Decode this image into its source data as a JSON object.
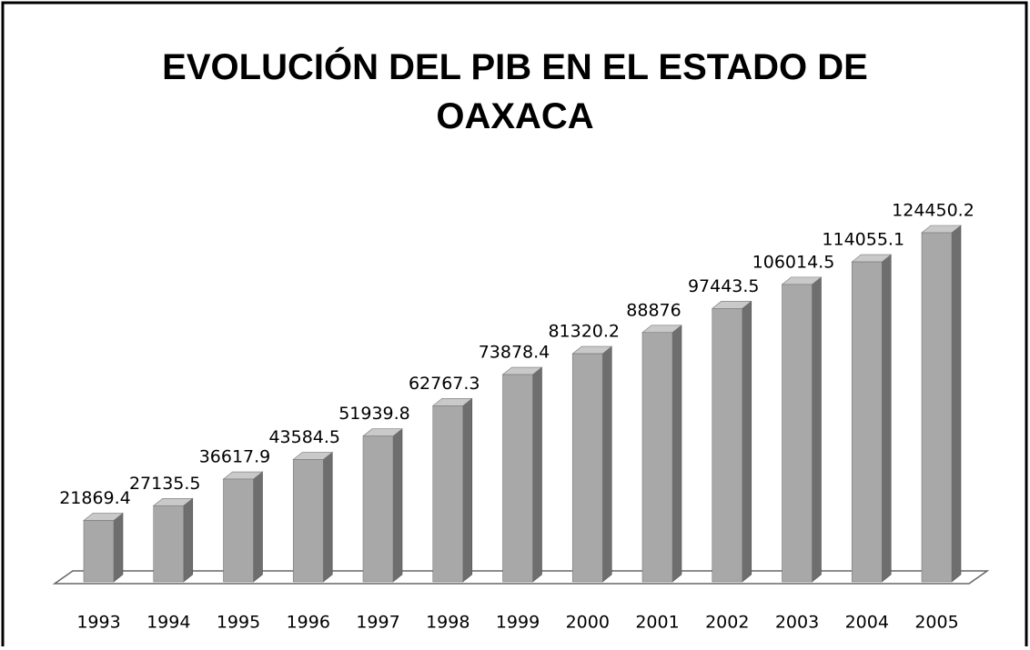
{
  "chart_data": {
    "type": "bar3d",
    "title": "EVOLUCIÓN DEL PIB EN EL ESTADO DE OAXACA",
    "categories": [
      "1993",
      "1994",
      "1995",
      "1996",
      "1997",
      "1998",
      "1999",
      "2000",
      "2001",
      "2002",
      "2003",
      "2004",
      "2005"
    ],
    "values": [
      21869.4,
      27135.5,
      36617.9,
      43584.5,
      51939.8,
      62767.3,
      73878.4,
      81320.2,
      88876,
      97443.5,
      106014.5,
      114055.1,
      124450.2
    ],
    "color": "#a8a8a8"
  }
}
